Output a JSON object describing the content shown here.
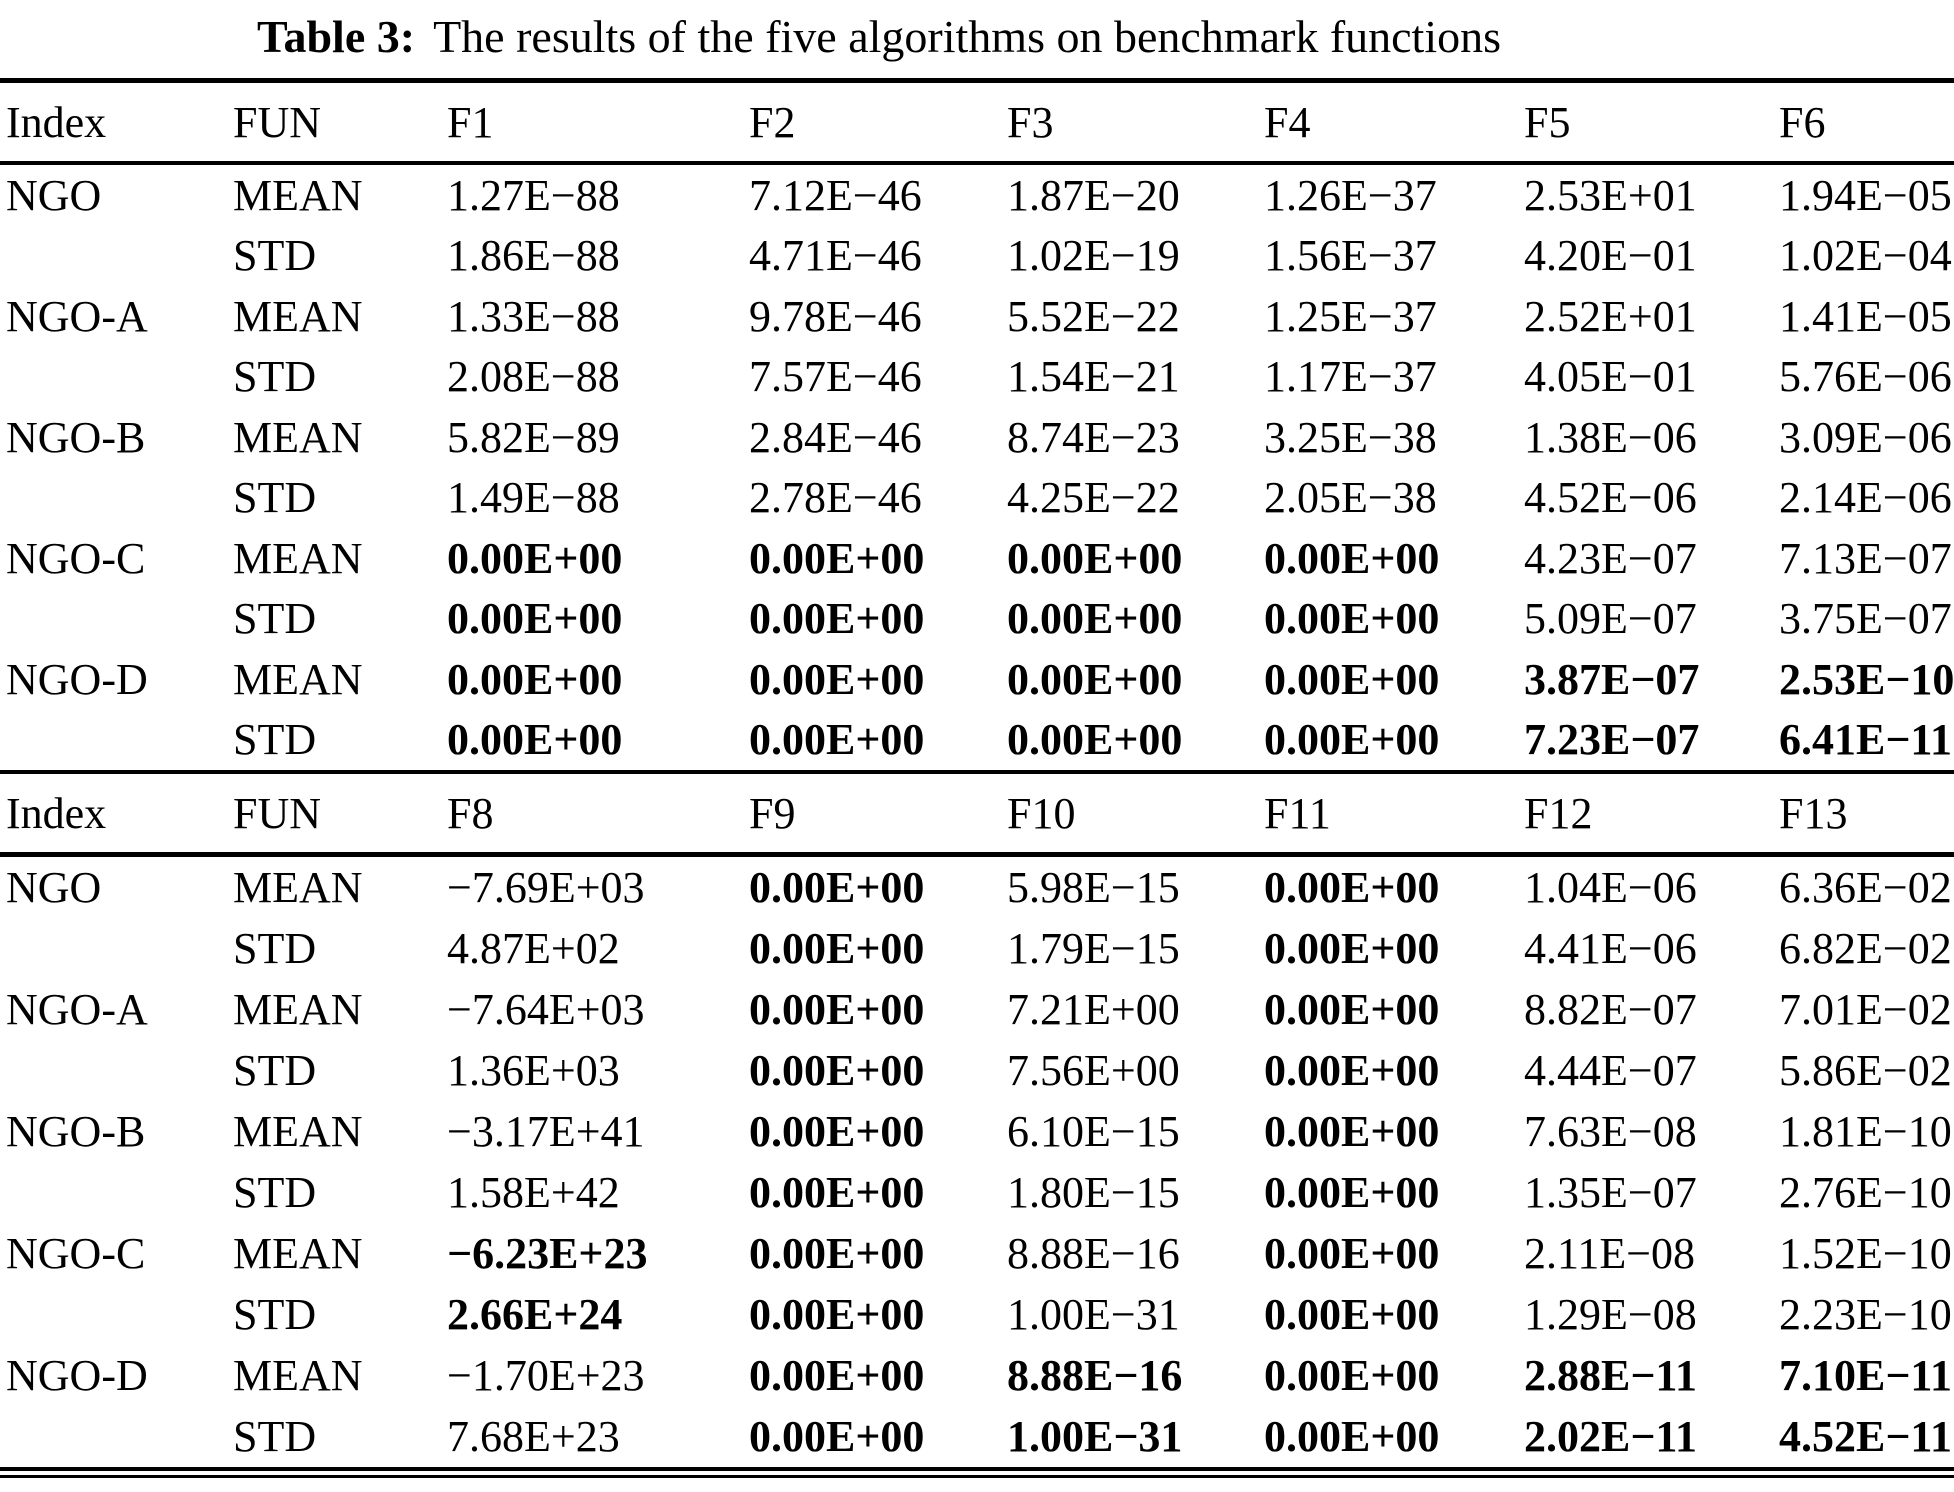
{
  "title": {
    "label": "Table 3:",
    "text": "The results of the five algorithms on benchmark functions"
  },
  "sections": [
    {
      "headers": [
        "Index",
        "FUN",
        "F1",
        "F2",
        "F3",
        "F4",
        "F5",
        "F6"
      ],
      "rows": [
        {
          "index": "NGO",
          "fun": "MEAN",
          "values": [
            "1.27E−88",
            "7.12E−46",
            "1.87E−20",
            "1.26E−37",
            "2.53E+01",
            "1.94E−05"
          ],
          "bold": [
            0,
            0,
            0,
            0,
            0,
            0
          ]
        },
        {
          "index": "",
          "fun": "STD",
          "values": [
            "1.86E−88",
            "4.71E−46",
            "1.02E−19",
            "1.56E−37",
            "4.20E−01",
            "1.02E−04"
          ],
          "bold": [
            0,
            0,
            0,
            0,
            0,
            0
          ]
        },
        {
          "index": "NGO-A",
          "fun": "MEAN",
          "values": [
            "1.33E−88",
            "9.78E−46",
            "5.52E−22",
            "1.25E−37",
            "2.52E+01",
            "1.41E−05"
          ],
          "bold": [
            0,
            0,
            0,
            0,
            0,
            0
          ]
        },
        {
          "index": "",
          "fun": "STD",
          "values": [
            "2.08E−88",
            "7.57E−46",
            "1.54E−21",
            "1.17E−37",
            "4.05E−01",
            "5.76E−06"
          ],
          "bold": [
            0,
            0,
            0,
            0,
            0,
            0
          ]
        },
        {
          "index": "NGO-B",
          "fun": "MEAN",
          "values": [
            "5.82E−89",
            "2.84E−46",
            "8.74E−23",
            "3.25E−38",
            "1.38E−06",
            "3.09E−06"
          ],
          "bold": [
            0,
            0,
            0,
            0,
            0,
            0
          ]
        },
        {
          "index": "",
          "fun": "STD",
          "values": [
            "1.49E−88",
            "2.78E−46",
            "4.25E−22",
            "2.05E−38",
            "4.52E−06",
            "2.14E−06"
          ],
          "bold": [
            0,
            0,
            0,
            0,
            0,
            0
          ]
        },
        {
          "index": "NGO-C",
          "fun": "MEAN",
          "values": [
            "0.00E+00",
            "0.00E+00",
            "0.00E+00",
            "0.00E+00",
            "4.23E−07",
            "7.13E−07"
          ],
          "bold": [
            1,
            1,
            1,
            1,
            0,
            0
          ]
        },
        {
          "index": "",
          "fun": "STD",
          "values": [
            "0.00E+00",
            "0.00E+00",
            "0.00E+00",
            "0.00E+00",
            "5.09E−07",
            "3.75E−07"
          ],
          "bold": [
            1,
            1,
            1,
            1,
            0,
            0
          ]
        },
        {
          "index": "NGO-D",
          "fun": "MEAN",
          "values": [
            "0.00E+00",
            "0.00E+00",
            "0.00E+00",
            "0.00E+00",
            "3.87E−07",
            "2.53E−10"
          ],
          "bold": [
            1,
            1,
            1,
            1,
            1,
            1
          ]
        },
        {
          "index": "",
          "fun": "STD",
          "values": [
            "0.00E+00",
            "0.00E+00",
            "0.00E+00",
            "0.00E+00",
            "7.23E−07",
            "6.41E−11"
          ],
          "bold": [
            1,
            1,
            1,
            1,
            1,
            1
          ]
        }
      ]
    },
    {
      "headers": [
        "Index",
        "FUN",
        "F8",
        "F9",
        "F10",
        "F11",
        "F12",
        "F13"
      ],
      "rows": [
        {
          "index": "NGO",
          "fun": "MEAN",
          "values": [
            "−7.69E+03",
            "0.00E+00",
            "5.98E−15",
            "0.00E+00",
            "1.04E−06",
            "6.36E−02"
          ],
          "bold": [
            0,
            1,
            0,
            1,
            0,
            0
          ]
        },
        {
          "index": "",
          "fun": "STD",
          "values": [
            "4.87E+02",
            "0.00E+00",
            "1.79E−15",
            "0.00E+00",
            "4.41E−06",
            "6.82E−02"
          ],
          "bold": [
            0,
            1,
            0,
            1,
            0,
            0
          ]
        },
        {
          "index": "NGO-A",
          "fun": "MEAN",
          "values": [
            "−7.64E+03",
            "0.00E+00",
            "7.21E+00",
            "0.00E+00",
            "8.82E−07",
            "7.01E−02"
          ],
          "bold": [
            0,
            1,
            0,
            1,
            0,
            0
          ]
        },
        {
          "index": "",
          "fun": "STD",
          "values": [
            "1.36E+03",
            "0.00E+00",
            "7.56E+00",
            "0.00E+00",
            "4.44E−07",
            "5.86E−02"
          ],
          "bold": [
            0,
            1,
            0,
            1,
            0,
            0
          ]
        },
        {
          "index": "NGO-B",
          "fun": "MEAN",
          "values": [
            "−3.17E+41",
            "0.00E+00",
            "6.10E−15",
            "0.00E+00",
            "7.63E−08",
            "1.81E−10"
          ],
          "bold": [
            0,
            1,
            0,
            1,
            0,
            0
          ]
        },
        {
          "index": "",
          "fun": "STD",
          "values": [
            "1.58E+42",
            "0.00E+00",
            "1.80E−15",
            "0.00E+00",
            "1.35E−07",
            "2.76E−10"
          ],
          "bold": [
            0,
            1,
            0,
            1,
            0,
            0
          ]
        },
        {
          "index": "NGO-C",
          "fun": "MEAN",
          "values": [
            "−6.23E+23",
            "0.00E+00",
            "8.88E−16",
            "0.00E+00",
            "2.11E−08",
            "1.52E−10"
          ],
          "bold": [
            1,
            1,
            0,
            1,
            0,
            0
          ]
        },
        {
          "index": "",
          "fun": "STD",
          "values": [
            "2.66E+24",
            "0.00E+00",
            "1.00E−31",
            "0.00E+00",
            "1.29E−08",
            "2.23E−10"
          ],
          "bold": [
            1,
            1,
            0,
            1,
            0,
            0
          ]
        },
        {
          "index": "NGO-D",
          "fun": "MEAN",
          "values": [
            "−1.70E+23",
            "0.00E+00",
            "8.88E−16",
            "0.00E+00",
            "2.88E−11",
            "7.10E−11"
          ],
          "bold": [
            0,
            1,
            1,
            1,
            1,
            1
          ]
        },
        {
          "index": "",
          "fun": "STD",
          "values": [
            "7.68E+23",
            "0.00E+00",
            "1.00E−31",
            "0.00E+00",
            "2.02E−11",
            "4.52E−11"
          ],
          "bold": [
            0,
            1,
            1,
            1,
            1,
            1
          ]
        }
      ]
    }
  ]
}
